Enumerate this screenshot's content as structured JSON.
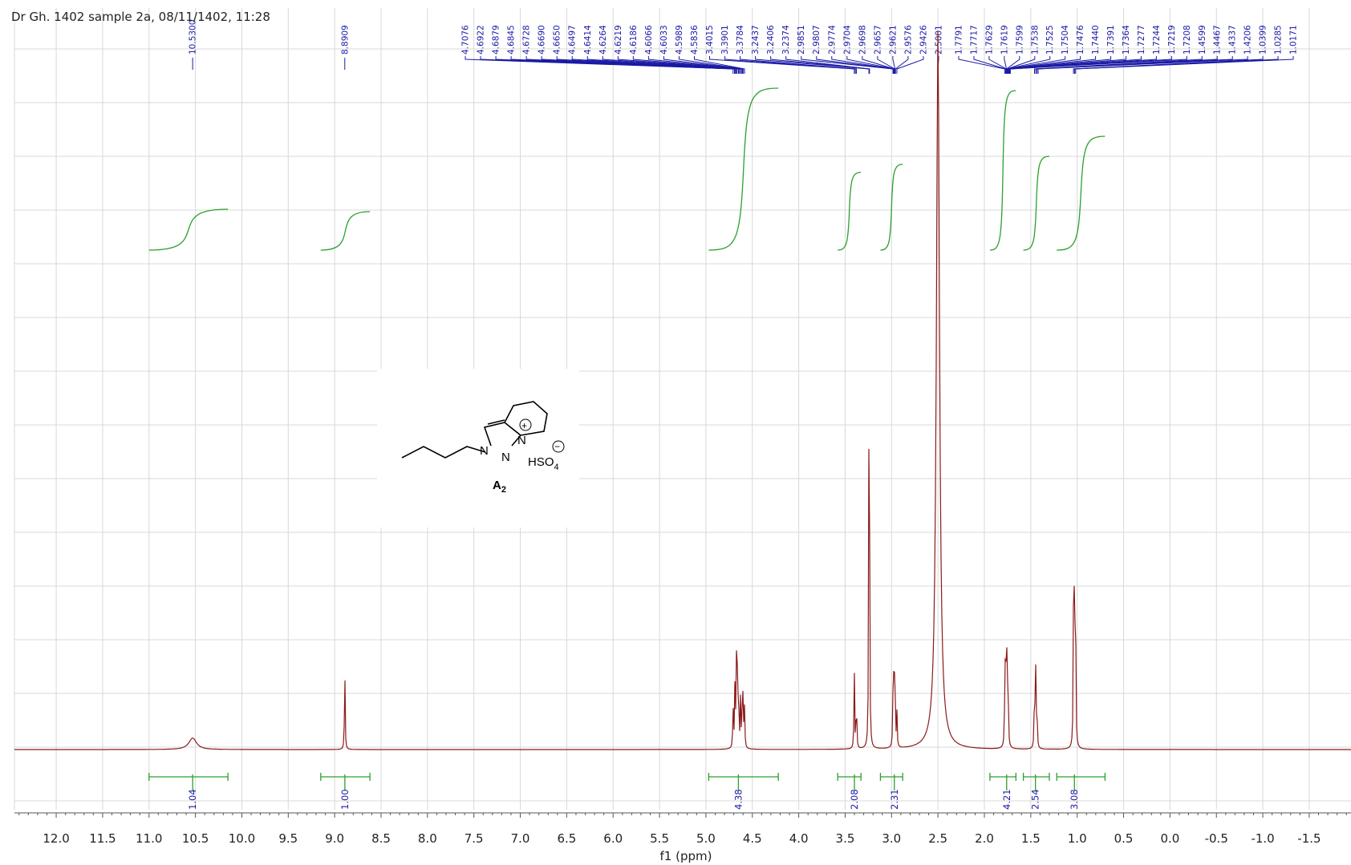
{
  "title": "Dr Gh. 1402 sample 2a, 08/11/1402, 11:28",
  "chart_data": {
    "type": "line",
    "title": "Dr Gh. 1402 sample 2a, 08/11/1402, 11:28",
    "xlabel": "f1 (ppm)",
    "ylabel": "",
    "xlim": [
      12.45,
      -1.95
    ],
    "x_reversed": true,
    "grid": true,
    "x_ticks": [
      "12.0",
      "11.5",
      "11.0",
      "10.5",
      "10.0",
      "9.5",
      "9.0",
      "8.5",
      "8.0",
      "7.5",
      "7.0",
      "6.5",
      "6.0",
      "5.5",
      "5.0",
      "4.5",
      "4.0",
      "3.5",
      "3.0",
      "2.5",
      "2.0",
      "1.5",
      "1.0",
      "0.5",
      "0.0",
      "-0.5",
      "-1.0",
      "-1.5"
    ],
    "x_tick_values": [
      12.0,
      11.5,
      11.0,
      10.5,
      10.0,
      9.5,
      9.0,
      8.5,
      8.0,
      7.5,
      7.0,
      6.5,
      6.0,
      5.5,
      5.0,
      4.5,
      4.0,
      3.5,
      3.0,
      2.5,
      2.0,
      1.5,
      1.0,
      0.5,
      0.0,
      -0.5,
      -1.0,
      -1.5
    ],
    "peaks_ppm": [
      {
        "ppm": 10.53,
        "height": 0.02,
        "width": 0.05
      },
      {
        "ppm": 8.8909,
        "height": 0.15,
        "width": 0.004
      },
      {
        "ppm": 4.7076,
        "height": 0.08,
        "width": 0.004
      },
      {
        "ppm": 4.6879,
        "height": 0.1,
        "width": 0.004
      },
      {
        "ppm": 4.6728,
        "height": 0.13,
        "width": 0.004
      },
      {
        "ppm": 4.665,
        "height": 0.17,
        "width": 0.004
      },
      {
        "ppm": 4.6497,
        "height": 0.13,
        "width": 0.004
      },
      {
        "ppm": 4.6264,
        "height": 0.09,
        "width": 0.004
      },
      {
        "ppm": 4.6066,
        "height": 0.1,
        "width": 0.004
      },
      {
        "ppm": 4.5989,
        "height": 0.08,
        "width": 0.004
      },
      {
        "ppm": 4.5836,
        "height": 0.07,
        "width": 0.004
      },
      {
        "ppm": 3.4015,
        "height": 0.14,
        "width": 0.004
      },
      {
        "ppm": 3.3784,
        "height": 0.1,
        "width": 0.004
      },
      {
        "ppm": 3.2437,
        "height": 0.48,
        "width": 0.004
      },
      {
        "ppm": 3.2374,
        "height": 0.3,
        "width": 0.004
      },
      {
        "ppm": 2.9851,
        "height": 0.07,
        "width": 0.004
      },
      {
        "ppm": 2.9774,
        "height": 0.09,
        "width": 0.004
      },
      {
        "ppm": 2.9698,
        "height": 0.1,
        "width": 0.004
      },
      {
        "ppm": 2.9621,
        "height": 0.09,
        "width": 0.004
      },
      {
        "ppm": 2.9426,
        "height": 0.06,
        "width": 0.004
      },
      {
        "ppm": 2.5001,
        "height": 1.25,
        "width": 0.02
      },
      {
        "ppm": 1.7791,
        "height": 0.1,
        "width": 0.004
      },
      {
        "ppm": 1.7717,
        "height": 0.15,
        "width": 0.004
      },
      {
        "ppm": 1.7619,
        "height": 0.17,
        "width": 0.004
      },
      {
        "ppm": 1.7538,
        "height": 0.14,
        "width": 0.004
      },
      {
        "ppm": 1.744,
        "height": 0.09,
        "width": 0.004
      },
      {
        "ppm": 1.4599,
        "height": 0.12,
        "width": 0.004
      },
      {
        "ppm": 1.4467,
        "height": 0.13,
        "width": 0.004
      },
      {
        "ppm": 1.4337,
        "height": 0.08,
        "width": 0.004
      },
      {
        "ppm": 1.0399,
        "height": 0.21,
        "width": 0.004
      },
      {
        "ppm": 1.0285,
        "height": 0.4,
        "width": 0.004
      },
      {
        "ppm": 1.0171,
        "height": 0.2,
        "width": 0.004
      }
    ],
    "peak_labels": {
      "single_left": [
        "10.5300",
        "8.8909"
      ],
      "group_center": [
        "4.7076",
        "4.6922",
        "4.6879",
        "4.6845",
        "4.6728",
        "4.6690",
        "4.6650",
        "4.6497",
        "4.6414",
        "4.6264",
        "4.6219",
        "4.6186",
        "4.6066",
        "4.6033",
        "4.5989",
        "4.5836",
        "3.4015",
        "3.3901",
        "3.3784",
        "3.2437",
        "3.2406",
        "3.2374",
        "2.9851",
        "2.9807",
        "2.9774",
        "2.9704",
        "2.9698",
        "2.9657",
        "2.9621",
        "2.9576",
        "2.9426",
        "2.5001"
      ],
      "group_right": [
        "1.7791",
        "1.7717",
        "1.7629",
        "1.7619",
        "1.7599",
        "1.7538",
        "1.7525",
        "1.7504",
        "1.7476",
        "1.7440",
        "1.7391",
        "1.7364",
        "1.7277",
        "1.7244",
        "1.7219",
        "1.7208",
        "1.4599",
        "1.4467",
        "1.4337",
        "1.4206",
        "1.0399",
        "1.0285",
        "1.0171"
      ]
    },
    "integrals": [
      {
        "from": 11.0,
        "to": 10.15,
        "center": 10.53,
        "value": "1.04"
      },
      {
        "from": 9.15,
        "to": 8.62,
        "center": 8.89,
        "value": "1.00"
      },
      {
        "from": 4.97,
        "to": 4.22,
        "center": 4.65,
        "value": "4.38"
      },
      {
        "from": 3.58,
        "to": 3.33,
        "center": 3.4,
        "value": "2.08"
      },
      {
        "from": 3.12,
        "to": 2.88,
        "center": 2.97,
        "value": "2.31"
      },
      {
        "from": 1.94,
        "to": 1.66,
        "center": 1.76,
        "value": "4.21"
      },
      {
        "from": 1.58,
        "to": 1.3,
        "center": 1.45,
        "value": "2.54"
      },
      {
        "from": 1.22,
        "to": 0.7,
        "center": 1.03,
        "value": "3.08"
      }
    ]
  },
  "structure": {
    "compound_label": "A",
    "compound_sub": "2",
    "anion": "HSO",
    "anion_sub": "4",
    "atom_n1": "N",
    "atom_n2": "N",
    "atom_n3": "N",
    "plus_sign": "+",
    "minus_sign": "−"
  }
}
